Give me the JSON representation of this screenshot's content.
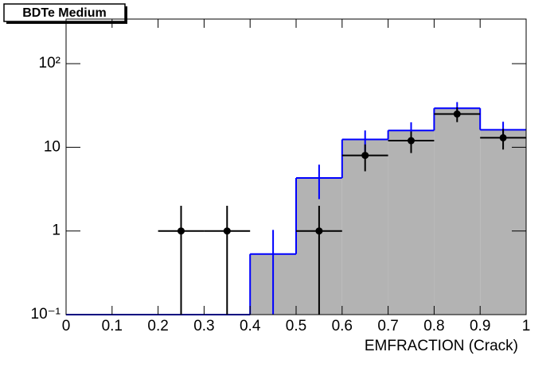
{
  "chart_data": {
    "type": "histogram",
    "title": "BDTe Medium",
    "x_label": "EMFRACTION (Crack)",
    "bins": [
      0,
      0.1,
      0.2,
      0.3,
      0.4,
      0.5,
      0.6,
      0.7,
      0.8,
      0.9,
      1
    ],
    "mc": {
      "counts": [
        0,
        0,
        0,
        0,
        0.53,
        4.3,
        12.4,
        15.9,
        29.3,
        16.2
      ],
      "errors": [
        null,
        null,
        null,
        null,
        0.5,
        1.9,
        3.5,
        4,
        5.4,
        4
      ],
      "color": "#0000ff",
      "fill": "#b3b3b3"
    },
    "data": {
      "x": [
        0.25,
        0.35,
        0.55,
        0.65,
        0.75,
        0.85,
        0.95
      ],
      "values": [
        1,
        1,
        1,
        8,
        12,
        25,
        13
      ],
      "errors": [
        1,
        1,
        1,
        2.83,
        3.46,
        5,
        3.6
      ],
      "color": "#000000"
    },
    "xlim": [
      0,
      1
    ],
    "xticks": [
      0,
      0.1,
      0.2,
      0.3,
      0.4,
      0.5,
      0.6,
      0.7,
      0.8,
      0.9,
      1
    ],
    "log_y": true,
    "ylim": [
      0.1,
      341
    ],
    "yticks": [
      {
        "value": 0.1,
        "label": "10⁻¹"
      },
      1,
      10,
      {
        "value": 100,
        "label": "10²"
      }
    ]
  }
}
